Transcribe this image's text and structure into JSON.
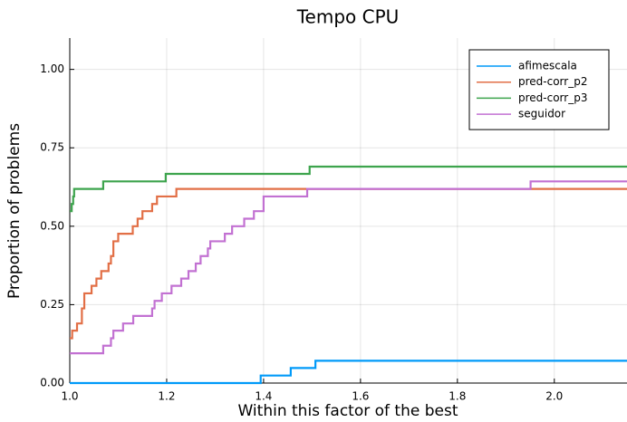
{
  "chart_data": {
    "type": "line",
    "step": "post",
    "title": "Tempo CPU",
    "xlabel": "Within this factor of the best",
    "ylabel": "Proportion of problems",
    "xlim": [
      1,
      2.15
    ],
    "ylim": [
      0,
      1.1
    ],
    "xticks": [
      {
        "value": 1,
        "label": "1.0"
      },
      1.2,
      1.4,
      1.6,
      1.8,
      {
        "value": 2,
        "label": "2.0"
      }
    ],
    "yticks": [
      {
        "value": 0,
        "label": "0.00"
      },
      0.25,
      {
        "value": 0.5,
        "label": "0.50"
      },
      0.75,
      {
        "value": 1,
        "label": "1.00"
      }
    ],
    "grid": true,
    "legend": "top-right",
    "series": [
      {
        "name": "afimescala",
        "color": "#009af9",
        "x": [
          1,
          1.394,
          1.456,
          1.507
        ],
        "values": [
          0,
          0.024,
          0.048,
          0.071
        ]
      },
      {
        "name": "pred-corr_p2",
        "color": "#e26f46",
        "x": [
          1,
          1.005,
          1.015,
          1.025,
          1.03,
          1.045,
          1.055,
          1.065,
          1.08,
          1.085,
          1.09,
          1.1,
          1.13,
          1.14,
          1.15,
          1.17,
          1.18,
          1.22
        ],
        "values": [
          0.143,
          0.167,
          0.19,
          0.238,
          0.286,
          0.31,
          0.333,
          0.357,
          0.381,
          0.405,
          0.452,
          0.476,
          0.5,
          0.524,
          0.548,
          0.571,
          0.595,
          0.619
        ]
      },
      {
        "name": "pred-corr_p3",
        "color": "#3da44d",
        "x": [
          1,
          1.004,
          1.007,
          1.009,
          1.069,
          1.198,
          1.495
        ],
        "values": [
          0.548,
          0.571,
          0.595,
          0.619,
          0.643,
          0.667,
          0.69
        ]
      },
      {
        "name": "seguidor",
        "color": "#c271d2",
        "x": [
          1,
          1.069,
          1.085,
          1.09,
          1.11,
          1.131,
          1.17,
          1.175,
          1.19,
          1.21,
          1.23,
          1.245,
          1.26,
          1.27,
          1.285,
          1.29,
          1.32,
          1.335,
          1.36,
          1.38,
          1.4,
          1.49,
          1.951
        ],
        "values": [
          0.095,
          0.119,
          0.143,
          0.167,
          0.19,
          0.214,
          0.238,
          0.262,
          0.286,
          0.31,
          0.333,
          0.357,
          0.381,
          0.405,
          0.429,
          0.452,
          0.476,
          0.5,
          0.524,
          0.548,
          0.595,
          0.619,
          0.643
        ]
      }
    ]
  }
}
